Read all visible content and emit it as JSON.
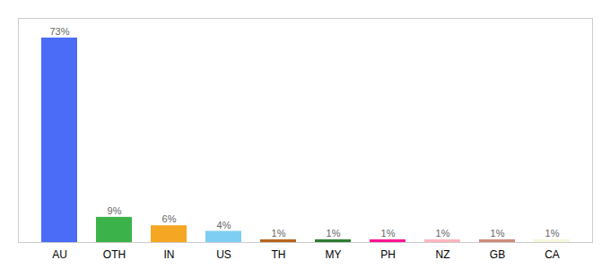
{
  "chart_data": {
    "type": "bar",
    "categories": [
      "AU",
      "OTH",
      "IN",
      "US",
      "TH",
      "MY",
      "PH",
      "NZ",
      "GB",
      "CA"
    ],
    "values": [
      73,
      9,
      6,
      4,
      1,
      1,
      1,
      1,
      1,
      1
    ],
    "value_labels": [
      "73%",
      "9%",
      "6%",
      "4%",
      "1%",
      "1%",
      "1%",
      "1%",
      "1%",
      "1%"
    ],
    "data_labels": true,
    "colors": [
      "#4a6cf7",
      "#3bb34a",
      "#f5a623",
      "#7ecef4",
      "#b5651d",
      "#2e7d32",
      "#ff1493",
      "#ffb6c1",
      "#cd8b7a",
      "#f5f5dc"
    ],
    "ylim": [
      0,
      80
    ],
    "tick_labels": "x",
    "grid": false
  }
}
